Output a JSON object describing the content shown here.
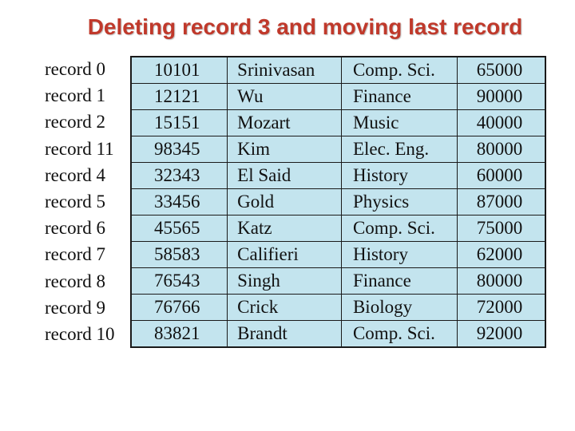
{
  "slide": {
    "title": "Deleting record 3 and moving last record"
  },
  "records": [
    {
      "label": "record 0",
      "id": "10101",
      "name": "Srinivasan",
      "dept": "Comp. Sci.",
      "salary": "65000"
    },
    {
      "label": "record 1",
      "id": "12121",
      "name": "Wu",
      "dept": "Finance",
      "salary": "90000"
    },
    {
      "label": "record 2",
      "id": "15151",
      "name": "Mozart",
      "dept": "Music",
      "salary": "40000"
    },
    {
      "label": "record 11",
      "id": "98345",
      "name": "Kim",
      "dept": "Elec. Eng.",
      "salary": "80000"
    },
    {
      "label": "record 4",
      "id": "32343",
      "name": "El Said",
      "dept": "History",
      "salary": "60000"
    },
    {
      "label": "record 5",
      "id": "33456",
      "name": "Gold",
      "dept": "Physics",
      "salary": "87000"
    },
    {
      "label": "record 6",
      "id": "45565",
      "name": "Katz",
      "dept": "Comp. Sci.",
      "salary": "75000"
    },
    {
      "label": "record 7",
      "id": "58583",
      "name": "Califieri",
      "dept": "History",
      "salary": "62000"
    },
    {
      "label": "record 8",
      "id": "76543",
      "name": "Singh",
      "dept": "Finance",
      "salary": "80000"
    },
    {
      "label": "record 9",
      "id": "76766",
      "name": "Crick",
      "dept": "Biology",
      "salary": "72000"
    },
    {
      "label": "record 10",
      "id": "83821",
      "name": "Brandt",
      "dept": "Comp. Sci.",
      "salary": "92000"
    }
  ],
  "colors": {
    "title": "#c0392b",
    "table_fill": "#c3e4ee",
    "grid": "#1a1a1a"
  }
}
